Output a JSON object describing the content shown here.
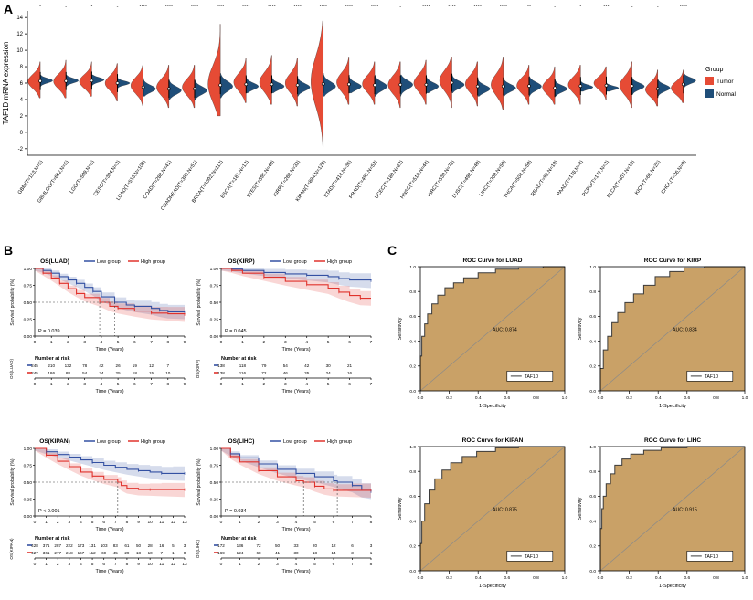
{
  "panels": {
    "a": {
      "label": "A"
    },
    "b": {
      "label": "B"
    },
    "c": {
      "label": "C"
    }
  },
  "colors": {
    "tumor": "#e64b35",
    "normal": "#1f4e79",
    "km_low": "#3350a2",
    "km_high": "#e0322c",
    "roc_fill": "#c9a167",
    "roc_line": "#3a3a3a"
  },
  "chart_data": [
    {
      "type": "violin",
      "title": "",
      "ylabel": "TAF1D mRNA expression",
      "ylim": [
        -2,
        14
      ],
      "legend_position": "right",
      "note": "paired half-violins Tumor(left,red) vs Normal(right,blue) per cancer type"
    },
    {
      "type": "line",
      "title": "Kaplan-Meier overall survival curves, see km key"
    },
    {
      "type": "area",
      "title": "ROC curves, see roc key"
    }
  ],
  "violin": {
    "ylabel": "TAF1D mRNA expression",
    "yticks": [
      -2,
      0,
      2,
      4,
      6,
      8,
      10,
      12,
      14
    ],
    "legend_title": "Group",
    "tumor_label": "Tumor",
    "normal_label": "Normal",
    "categories": [
      {
        "label": "GBM(T=153,N=5)",
        "sig": "*",
        "t": {
          "lo": 4.2,
          "hi": 8.6,
          "mean": 6.2
        },
        "n": {
          "lo": 5.6,
          "hi": 7.0,
          "mean": 6.3
        }
      },
      {
        "label": "GBMLGG(T=662,N=5)",
        "sig": "-",
        "t": {
          "lo": 4.2,
          "hi": 8.8,
          "mean": 6.2
        },
        "n": {
          "lo": 5.6,
          "hi": 7.0,
          "mean": 6.3
        }
      },
      {
        "label": "LGG(T=509,N=5)",
        "sig": "*",
        "t": {
          "lo": 4.4,
          "hi": 8.6,
          "mean": 6.2
        },
        "n": {
          "lo": 5.6,
          "hi": 7.0,
          "mean": 6.4
        }
      },
      {
        "label": "CESC(T=304,N=3)",
        "sig": "-",
        "t": {
          "lo": 3.8,
          "hi": 8.4,
          "mean": 6.0
        },
        "n": {
          "lo": 5.4,
          "hi": 6.6,
          "mean": 6.0
        }
      },
      {
        "label": "LUAD(T=513,N=109)",
        "sig": "****",
        "t": {
          "lo": 3.2,
          "hi": 8.2,
          "mean": 5.7
        },
        "n": {
          "lo": 4.4,
          "hi": 6.6,
          "mean": 5.3
        }
      },
      {
        "label": "COAD(T=288,N=41)",
        "sig": "****",
        "t": {
          "lo": 3.0,
          "hi": 8.2,
          "mean": 5.5
        },
        "n": {
          "lo": 4.0,
          "hi": 6.4,
          "mean": 5.1
        }
      },
      {
        "label": "COADREAD(T=380,N=51)",
        "sig": "****",
        "t": {
          "lo": 3.0,
          "hi": 8.2,
          "mean": 5.5
        },
        "n": {
          "lo": 4.0,
          "hi": 6.4,
          "mean": 5.1
        }
      },
      {
        "label": "BRCA(T=1092,N=113)",
        "sig": "****",
        "t": {
          "lo": 2.0,
          "hi": 13.2,
          "mean": 5.9
        },
        "n": {
          "lo": 4.2,
          "hi": 7.2,
          "mean": 5.6
        }
      },
      {
        "label": "ESCA(T=181,N=13)",
        "sig": "****",
        "t": {
          "lo": 3.6,
          "hi": 9.0,
          "mean": 6.1
        },
        "n": {
          "lo": 4.8,
          "hi": 6.8,
          "mean": 5.6
        }
      },
      {
        "label": "STES(T=595,N=49)",
        "sig": "****",
        "t": {
          "lo": 3.4,
          "hi": 9.4,
          "mean": 6.1
        },
        "n": {
          "lo": 4.8,
          "hi": 6.8,
          "mean": 5.6
        }
      },
      {
        "label": "KIRP(T=288,N=32)",
        "sig": "****",
        "t": {
          "lo": 3.2,
          "hi": 9.0,
          "mean": 6.0
        },
        "n": {
          "lo": 4.4,
          "hi": 6.6,
          "mean": 5.5
        }
      },
      {
        "label": "KIPAN(T=884,N=129)",
        "sig": "****",
        "t": {
          "lo": -1.8,
          "hi": 13.6,
          "mean": 6.2
        },
        "n": {
          "lo": 4.4,
          "hi": 7.2,
          "mean": 5.6
        }
      },
      {
        "label": "STAD(T=414,N=36)",
        "sig": "****",
        "t": {
          "lo": 3.4,
          "hi": 9.2,
          "mean": 6.1
        },
        "n": {
          "lo": 4.8,
          "hi": 7.0,
          "mean": 5.6
        }
      },
      {
        "label": "PRAD(T=495,N=52)",
        "sig": "****",
        "t": {
          "lo": 3.4,
          "hi": 8.6,
          "mean": 5.9
        },
        "n": {
          "lo": 4.4,
          "hi": 7.0,
          "mean": 5.6
        }
      },
      {
        "label": "UCEC(T=180,N=23)",
        "sig": "-",
        "t": {
          "lo": 3.0,
          "hi": 8.6,
          "mean": 5.8
        },
        "n": {
          "lo": 4.4,
          "hi": 7.0,
          "mean": 5.8
        }
      },
      {
        "label": "HNSC(T=518,N=44)",
        "sig": "****",
        "t": {
          "lo": 3.4,
          "hi": 8.8,
          "mean": 6.0
        },
        "n": {
          "lo": 4.8,
          "hi": 7.0,
          "mean": 5.6
        }
      },
      {
        "label": "KIRC(T=530,N=72)",
        "sig": "****",
        "t": {
          "lo": 3.0,
          "hi": 9.2,
          "mean": 6.3
        },
        "n": {
          "lo": 4.8,
          "hi": 7.0,
          "mean": 5.8
        }
      },
      {
        "label": "LUSC(T=498,N=49)",
        "sig": "****",
        "t": {
          "lo": 3.2,
          "hi": 8.6,
          "mean": 5.9
        },
        "n": {
          "lo": 4.4,
          "hi": 6.6,
          "mean": 5.3
        }
      },
      {
        "label": "LIHC(T=369,N=50)",
        "sig": "****",
        "t": {
          "lo": 2.8,
          "hi": 9.2,
          "mean": 5.8
        },
        "n": {
          "lo": 4.4,
          "hi": 6.6,
          "mean": 5.4
        }
      },
      {
        "label": "THCA(T=504,N=59)",
        "sig": "**",
        "t": {
          "lo": 3.4,
          "hi": 8.2,
          "mean": 5.7
        },
        "n": {
          "lo": 4.4,
          "hi": 6.8,
          "mean": 5.6
        }
      },
      {
        "label": "READ(T=92,N=10)",
        "sig": "-",
        "t": {
          "lo": 3.4,
          "hi": 8.0,
          "mean": 5.5
        },
        "n": {
          "lo": 4.4,
          "hi": 6.4,
          "mean": 5.3
        }
      },
      {
        "label": "PAAD(T=178,N=4)",
        "sig": "*",
        "t": {
          "lo": 3.4,
          "hi": 8.2,
          "mean": 5.8
        },
        "n": {
          "lo": 5.0,
          "hi": 6.4,
          "mean": 5.5
        }
      },
      {
        "label": "PCPG(T=177,N=3)",
        "sig": "***",
        "t": {
          "lo": 4.0,
          "hi": 8.0,
          "mean": 6.0
        },
        "n": {
          "lo": 5.0,
          "hi": 6.2,
          "mean": 5.4
        }
      },
      {
        "label": "BLCA(T=407,N=19)",
        "sig": "-",
        "t": {
          "lo": 3.0,
          "hi": 8.6,
          "mean": 5.7
        },
        "n": {
          "lo": 4.6,
          "hi": 6.6,
          "mean": 5.6
        }
      },
      {
        "label": "KICH(T=66,N=25)",
        "sig": "-",
        "t": {
          "lo": 3.2,
          "hi": 7.6,
          "mean": 5.2
        },
        "n": {
          "lo": 4.4,
          "hi": 6.4,
          "mean": 5.4
        }
      },
      {
        "label": "CHOL(T=36,N=9)",
        "sig": "****",
        "t": {
          "lo": 3.6,
          "hi": 7.6,
          "mean": 5.4
        },
        "n": {
          "lo": 5.4,
          "hi": 7.2,
          "mean": 6.3
        }
      }
    ]
  },
  "km_common": {
    "legend_low": "Low group",
    "legend_high": "High group",
    "xlabel": "Time (Years)",
    "ylabel": "Survival probability (%)",
    "risk_header": "Number at risk"
  },
  "km": [
    {
      "title": "OS(LUAD)",
      "p": "P = 0.039",
      "risk_label": "OS(LUAD)",
      "xmax": 9,
      "xticks": [
        0,
        1,
        2,
        3,
        4,
        5,
        6,
        7,
        8,
        9
      ],
      "risk_times": [
        0,
        1,
        2,
        3,
        4,
        5,
        6,
        7,
        8
      ],
      "risk_low": [
        245,
        210,
        132,
        78,
        42,
        26,
        19,
        12,
        7
      ],
      "risk_high": [
        245,
        186,
        88,
        54,
        34,
        25,
        18,
        15,
        10
      ],
      "medians": [
        3.9,
        4.8
      ],
      "low": [
        [
          0,
          1
        ],
        [
          0.5,
          0.97
        ],
        [
          1,
          0.93
        ],
        [
          1.5,
          0.88
        ],
        [
          2,
          0.83
        ],
        [
          2.5,
          0.78
        ],
        [
          3,
          0.72
        ],
        [
          3.5,
          0.66
        ],
        [
          4,
          0.58
        ],
        [
          4.8,
          0.5
        ],
        [
          5.5,
          0.46
        ],
        [
          6,
          0.44
        ],
        [
          7,
          0.41
        ],
        [
          7.5,
          0.38
        ],
        [
          8,
          0.36
        ],
        [
          9,
          0.36
        ]
      ],
      "high": [
        [
          0,
          1
        ],
        [
          0.5,
          0.93
        ],
        [
          1,
          0.86
        ],
        [
          1.5,
          0.78
        ],
        [
          2,
          0.7
        ],
        [
          2.5,
          0.63
        ],
        [
          3,
          0.57
        ],
        [
          3.9,
          0.5
        ],
        [
          4.5,
          0.44
        ],
        [
          5,
          0.41
        ],
        [
          6,
          0.37
        ],
        [
          7,
          0.34
        ],
        [
          8,
          0.33
        ],
        [
          9,
          0.32
        ]
      ]
    },
    {
      "title": "OS(KIRP)",
      "p": "P = 0.045",
      "risk_label": "OS(KIRP)",
      "xmax": 7,
      "xticks": [
        0,
        1,
        2,
        3,
        4,
        5,
        6,
        7
      ],
      "risk_times": [
        0,
        1,
        2,
        3,
        4,
        5,
        6
      ],
      "risk_low": [
        138,
        118,
        79,
        54,
        42,
        30,
        21
      ],
      "risk_high": [
        138,
        116,
        72,
        46,
        35,
        24,
        16
      ],
      "medians": [],
      "low": [
        [
          0,
          1
        ],
        [
          0.5,
          0.99
        ],
        [
          1,
          0.97
        ],
        [
          2,
          0.94
        ],
        [
          3,
          0.92
        ],
        [
          4,
          0.9
        ],
        [
          5,
          0.88
        ],
        [
          5.5,
          0.85
        ],
        [
          6,
          0.83
        ],
        [
          7,
          0.82
        ]
      ],
      "high": [
        [
          0,
          1
        ],
        [
          0.5,
          0.97
        ],
        [
          1,
          0.93
        ],
        [
          2,
          0.87
        ],
        [
          3,
          0.81
        ],
        [
          4,
          0.76
        ],
        [
          5,
          0.71
        ],
        [
          5.5,
          0.65
        ],
        [
          6,
          0.6
        ],
        [
          6.5,
          0.56
        ],
        [
          7,
          0.56
        ]
      ]
    },
    {
      "title": "OS(KIPAN)",
      "p": "P < 0.001",
      "risk_label": "OS(KIPAN)",
      "xmax": 13,
      "xticks": [
        0,
        1,
        2,
        3,
        4,
        5,
        6,
        7,
        8,
        9,
        10,
        11,
        12,
        13
      ],
      "risk_times": [
        0,
        1,
        2,
        3,
        4,
        5,
        6,
        7,
        8,
        9,
        10,
        11,
        12,
        13
      ],
      "risk_low": [
        428,
        371,
        287,
        222,
        173,
        131,
        103,
        83,
        61,
        50,
        28,
        16,
        5,
        3
      ],
      "risk_high": [
        427,
        361,
        277,
        218,
        167,
        112,
        69,
        45,
        29,
        18,
        10,
        7,
        1,
        0
      ],
      "medians": [
        7.2
      ],
      "low": [
        [
          0,
          1
        ],
        [
          1,
          0.95
        ],
        [
          2,
          0.91
        ],
        [
          3,
          0.87
        ],
        [
          4,
          0.83
        ],
        [
          5,
          0.79
        ],
        [
          6,
          0.75
        ],
        [
          7,
          0.72
        ],
        [
          8,
          0.69
        ],
        [
          9,
          0.67
        ],
        [
          10,
          0.65
        ],
        [
          11,
          0.63
        ],
        [
          12,
          0.63
        ],
        [
          13,
          0.63
        ]
      ],
      "high": [
        [
          0,
          1
        ],
        [
          1,
          0.9
        ],
        [
          2,
          0.81
        ],
        [
          3,
          0.73
        ],
        [
          4,
          0.65
        ],
        [
          5,
          0.59
        ],
        [
          6,
          0.54
        ],
        [
          7.2,
          0.5
        ],
        [
          7.5,
          0.45
        ],
        [
          8,
          0.41
        ],
        [
          9,
          0.39
        ],
        [
          10,
          0.39
        ],
        [
          11,
          0.39
        ],
        [
          13,
          0.39
        ]
      ]
    },
    {
      "title": "OS(LIHC)",
      "p": "P = 0.034",
      "risk_label": "OS(LIHC)",
      "xmax": 8,
      "xticks": [
        0,
        1,
        2,
        3,
        4,
        5,
        6,
        7,
        8
      ],
      "risk_times": [
        0,
        1,
        2,
        3,
        4,
        5,
        6,
        7,
        8
      ],
      "risk_low": [
        172,
        136,
        72,
        50,
        33,
        20,
        12,
        6,
        3
      ],
      "risk_high": [
        169,
        124,
        68,
        41,
        30,
        18,
        14,
        3,
        1
      ],
      "medians": [
        4.4,
        6.2
      ],
      "low": [
        [
          0,
          1
        ],
        [
          0.5,
          0.92
        ],
        [
          1,
          0.86
        ],
        [
          2,
          0.77
        ],
        [
          3,
          0.69
        ],
        [
          4,
          0.63
        ],
        [
          5,
          0.58
        ],
        [
          6,
          0.52
        ],
        [
          6.2,
          0.5
        ],
        [
          7,
          0.45
        ],
        [
          7.5,
          0.38
        ],
        [
          8,
          0.36
        ]
      ],
      "high": [
        [
          0,
          1
        ],
        [
          0.5,
          0.88
        ],
        [
          1,
          0.8
        ],
        [
          2,
          0.67
        ],
        [
          3,
          0.58
        ],
        [
          4,
          0.52
        ],
        [
          4.4,
          0.5
        ],
        [
          5,
          0.44
        ],
        [
          5.5,
          0.4
        ],
        [
          6,
          0.38
        ],
        [
          7,
          0.38
        ],
        [
          8,
          0.38
        ]
      ]
    }
  ],
  "roc_common": {
    "xlabel": "1-Specificity",
    "ylabel": "Sensitivity",
    "legend": "TAF1D"
  },
  "roc": [
    {
      "title": "ROC Curve for LUAD",
      "auc": "AUC: 0.874",
      "points": [
        [
          0,
          0
        ],
        [
          0.01,
          0.28
        ],
        [
          0.03,
          0.44
        ],
        [
          0.05,
          0.54
        ],
        [
          0.08,
          0.62
        ],
        [
          0.12,
          0.7
        ],
        [
          0.17,
          0.77
        ],
        [
          0.23,
          0.83
        ],
        [
          0.3,
          0.87
        ],
        [
          0.4,
          0.91
        ],
        [
          0.52,
          0.95
        ],
        [
          0.68,
          0.98
        ],
        [
          0.85,
          0.99
        ],
        [
          1,
          1
        ]
      ]
    },
    {
      "title": "ROC Curve for KIRP",
      "auc": "AUC: 0.834",
      "points": [
        [
          0,
          0
        ],
        [
          0.02,
          0.18
        ],
        [
          0.05,
          0.33
        ],
        [
          0.08,
          0.44
        ],
        [
          0.12,
          0.55
        ],
        [
          0.17,
          0.63
        ],
        [
          0.23,
          0.71
        ],
        [
          0.3,
          0.78
        ],
        [
          0.38,
          0.85
        ],
        [
          0.48,
          0.92
        ],
        [
          0.58,
          0.96
        ],
        [
          0.72,
          0.99
        ],
        [
          1,
          1
        ]
      ]
    },
    {
      "title": "ROC Curve for KIPAN",
      "auc": "AUC: 0.875",
      "points": [
        [
          0,
          0
        ],
        [
          0.01,
          0.22
        ],
        [
          0.03,
          0.4
        ],
        [
          0.06,
          0.54
        ],
        [
          0.1,
          0.65
        ],
        [
          0.15,
          0.74
        ],
        [
          0.21,
          0.81
        ],
        [
          0.29,
          0.87
        ],
        [
          0.39,
          0.92
        ],
        [
          0.52,
          0.96
        ],
        [
          0.68,
          0.99
        ],
        [
          1,
          1
        ]
      ]
    },
    {
      "title": "ROC Curve for LIHC",
      "auc": "AUC: 0.915",
      "points": [
        [
          0,
          0
        ],
        [
          0.01,
          0.34
        ],
        [
          0.02,
          0.5
        ],
        [
          0.04,
          0.6
        ],
        [
          0.07,
          0.7
        ],
        [
          0.1,
          0.78
        ],
        [
          0.15,
          0.85
        ],
        [
          0.21,
          0.9
        ],
        [
          0.3,
          0.94
        ],
        [
          0.42,
          0.97
        ],
        [
          0.6,
          0.99
        ],
        [
          1,
          1
        ]
      ]
    }
  ]
}
